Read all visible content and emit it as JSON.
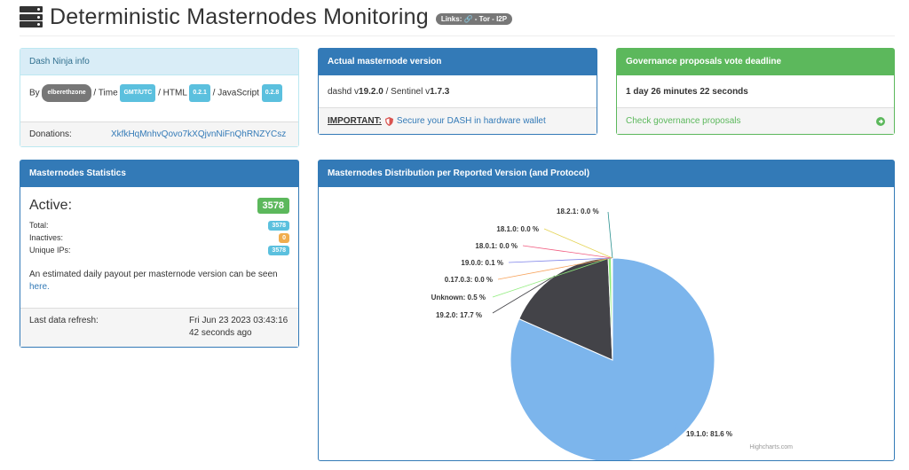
{
  "header": {
    "title": "Deterministic Masternodes Monitoring",
    "links_badge": "Links: 🔗 - Tor - I2P"
  },
  "ninja": {
    "heading": "Dash Ninja info",
    "by_prefix": "By",
    "author": "elberethzone",
    "time_sep": "/ Time",
    "time_badge": "GMT/UTC",
    "html_sep": "/ HTML",
    "html_badge": "0.2.1",
    "js_sep": "/ JavaScript",
    "js_badge": "0.2.8",
    "donations_label": "Donations:",
    "donations_address": "XkfkHqMnhvQovo7kXQjvnNiFnQhRNZYCsz"
  },
  "version": {
    "heading": "Actual masternode version",
    "dashd_prefix": "dashd v",
    "dashd_version": "19.2.0",
    "sentinel_prefix": " / Sentinel v",
    "sentinel_version": "1.7.3",
    "important_label": "IMPORTANT:",
    "important_text": "Secure your DASH in hardware wallet"
  },
  "governance": {
    "heading": "Governance proposals vote deadline",
    "deadline": "1 day 26 minutes 22 seconds",
    "link_text": "Check governance proposals"
  },
  "stats": {
    "heading": "Masternodes Statistics",
    "active_label": "Active:",
    "active_value": "3578",
    "total_label": "Total:",
    "total_value": "3578",
    "inactive_label": "Inactives:",
    "inactive_value": "0",
    "unique_label": "Unique IPs:",
    "unique_value": "3578",
    "payout_text": "An estimated daily payout per masternode version can be seen",
    "payout_link": "here.",
    "refresh_label": "Last data refresh:",
    "refresh_date": "Fri Jun 23 2023 03:43:16",
    "refresh_ago": "42 seconds ago"
  },
  "distribution": {
    "heading": "Masternodes Distribution per Reported Version (and Protocol)",
    "credits": "Highcharts.com"
  },
  "colors": {
    "primary": "#337ab7",
    "success": "#5cb85c",
    "info": "#5bc0de",
    "warning": "#f0ad4e",
    "pie_main": "#7cb5ec",
    "pie_second": "#434348"
  },
  "chart_data": {
    "type": "pie",
    "series": [
      {
        "label": "19.1.0: 81.6 %",
        "value": 81.6,
        "color": "#7cb5ec"
      },
      {
        "label": "19.2.0: 17.7 %",
        "value": 17.7,
        "color": "#434348"
      },
      {
        "label": "Unknown: 0.5 %",
        "value": 0.5,
        "color": "#90ed7d"
      },
      {
        "label": "0.17.0.3: 0.0 %",
        "value": 0.02,
        "color": "#f7a35c"
      },
      {
        "label": "19.0.0: 0.1 %",
        "value": 0.1,
        "color": "#8085e9"
      },
      {
        "label": "18.0.1: 0.0 %",
        "value": 0.02,
        "color": "#f15c80"
      },
      {
        "label": "18.1.0: 0.0 %",
        "value": 0.02,
        "color": "#e4d354"
      },
      {
        "label": "18.2.1: 0.0 %",
        "value": 0.02,
        "color": "#2b908f"
      }
    ]
  }
}
